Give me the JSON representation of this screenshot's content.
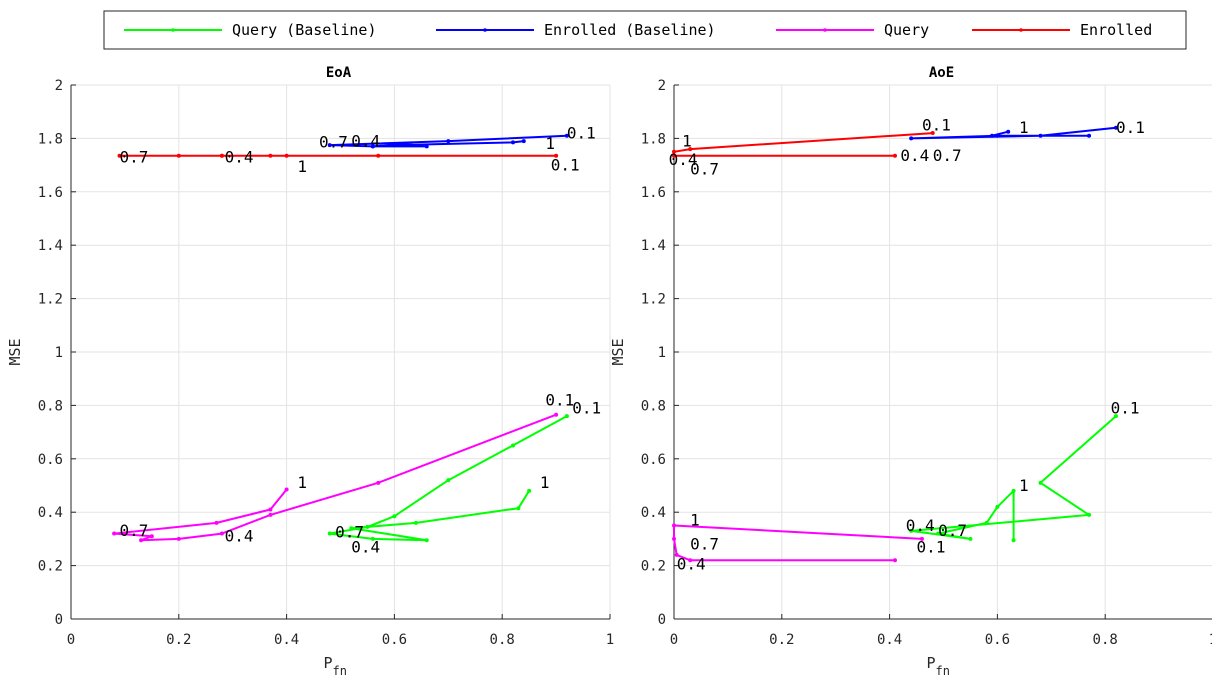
{
  "legend": {
    "entries": [
      {
        "label": "Query (Baseline)",
        "color": "#00ff00"
      },
      {
        "label": "Enrolled (Baseline)",
        "color": "#0000ff"
      },
      {
        "label": "Query",
        "color": "#ff00ff"
      },
      {
        "label": "Enrolled",
        "color": "#ff0000"
      }
    ]
  },
  "chart_data": [
    {
      "type": "line",
      "title": "EoA",
      "xlabel": "P",
      "xlabel_sub": "fn",
      "ylabel": "MSE",
      "xlim": [
        0,
        1
      ],
      "ylim": [
        0,
        2
      ],
      "xticks": [
        0,
        0.2,
        0.4,
        0.6,
        0.8,
        1
      ],
      "yticks": [
        0,
        0.2,
        0.4,
        0.6,
        0.8,
        1,
        1.2,
        1.4,
        1.6,
        1.8,
        2
      ],
      "xtick_labels": [
        "0",
        "0.2",
        "0.4",
        "0.6",
        "0.8",
        "1"
      ],
      "ytick_labels": [
        "0",
        "0.2",
        "0.4",
        "0.6",
        "0.8",
        "1",
        "1.2",
        "1.4",
        "1.6",
        "1.8",
        "2"
      ],
      "grid": true,
      "series": [
        {
          "name": "Query (Baseline)",
          "color": "#00ff00",
          "x": [
            0.92,
            0.82,
            0.7,
            0.6,
            0.55,
            0.48,
            0.56,
            0.66,
            0.52,
            0.64,
            0.83,
            0.85
          ],
          "y": [
            0.76,
            0.65,
            0.52,
            0.385,
            0.345,
            0.32,
            0.3,
            0.295,
            0.34,
            0.36,
            0.415,
            0.48
          ]
        },
        {
          "name": "Enrolled (Baseline)",
          "color": "#0000ff",
          "x": [
            0.92,
            0.7,
            0.48,
            0.56,
            0.66,
            0.62,
            0.56,
            0.6,
            0.82,
            0.84
          ],
          "y": [
            1.81,
            1.79,
            1.775,
            1.77,
            1.77,
            1.78,
            1.77,
            1.775,
            1.785,
            1.79
          ]
        },
        {
          "name": "Query",
          "color": "#ff00ff",
          "x": [
            0.9,
            0.57,
            0.37,
            0.28,
            0.2,
            0.13,
            0.15,
            0.08,
            0.27,
            0.37,
            0.4
          ],
          "y": [
            0.765,
            0.51,
            0.39,
            0.32,
            0.3,
            0.295,
            0.31,
            0.32,
            0.36,
            0.41,
            0.485
          ]
        },
        {
          "name": "Enrolled",
          "color": "#ff0000",
          "x": [
            0.9,
            0.57,
            0.28,
            0.2,
            0.09,
            0.28,
            0.37,
            0.4
          ],
          "y": [
            1.735,
            1.735,
            1.735,
            1.735,
            1.735,
            1.735,
            1.735,
            1.735
          ]
        }
      ],
      "annotations": [
        {
          "text": "0.1",
          "x": 0.93,
          "y": 0.77
        },
        {
          "text": "1",
          "x": 0.87,
          "y": 0.49
        },
        {
          "text": "0.7",
          "x": 0.49,
          "y": 0.305
        },
        {
          "text": "0.4",
          "x": 0.52,
          "y": 0.25
        },
        {
          "text": "0.1",
          "x": 0.88,
          "y": 0.8
        },
        {
          "text": "1",
          "x": 0.42,
          "y": 0.49
        },
        {
          "text": "0.7",
          "x": 0.09,
          "y": 0.31
        },
        {
          "text": "0.4",
          "x": 0.285,
          "y": 0.29
        },
        {
          "text": "0.1",
          "x": 0.92,
          "y": 1.8
        },
        {
          "text": "1",
          "x": 0.88,
          "y": 1.76
        },
        {
          "text": "0.7",
          "x": 0.46,
          "y": 1.765
        },
        {
          "text": "0.4",
          "x": 0.52,
          "y": 1.77
        },
        {
          "text": "0.1",
          "x": 0.89,
          "y": 1.68
        },
        {
          "text": "1",
          "x": 0.42,
          "y": 1.675
        },
        {
          "text": "0.7",
          "x": 0.09,
          "y": 1.71
        },
        {
          "text": "0.4",
          "x": 0.285,
          "y": 1.71
        }
      ]
    },
    {
      "type": "line",
      "title": "AoE",
      "xlabel": "P",
      "xlabel_sub": "fn",
      "ylabel": "MSE",
      "xlim": [
        0,
        1
      ],
      "ylim": [
        0,
        2
      ],
      "xticks": [
        0,
        0.2,
        0.4,
        0.6,
        0.8,
        1
      ],
      "yticks": [
        0,
        0.2,
        0.4,
        0.6,
        0.8,
        1,
        1.2,
        1.4,
        1.6,
        1.8,
        2
      ],
      "xtick_labels": [
        "0",
        "0.2",
        "0.4",
        "0.6",
        "0.8",
        "1"
      ],
      "ytick_labels": [
        "0",
        "0.2",
        "0.4",
        "0.6",
        "0.8",
        "1",
        "1.2",
        "1.4",
        "1.6",
        "1.8",
        "2"
      ],
      "grid": true,
      "series": [
        {
          "name": "Query (Baseline)",
          "color": "#00ff00",
          "x": [
            0.82,
            0.68,
            0.77,
            0.44,
            0.55,
            0.49,
            0.58,
            0.6,
            0.63,
            0.63
          ],
          "y": [
            0.76,
            0.51,
            0.39,
            0.33,
            0.3,
            0.32,
            0.36,
            0.42,
            0.48,
            0.295
          ]
        },
        {
          "name": "Enrolled (Baseline)",
          "color": "#0000ff",
          "x": [
            0.82,
            0.68,
            0.44,
            0.6,
            0.77,
            0.59,
            0.62
          ],
          "y": [
            1.84,
            1.81,
            1.8,
            1.81,
            1.81,
            1.81,
            1.825
          ]
        },
        {
          "name": "Query",
          "color": "#ff00ff",
          "x": [
            0.41,
            0.03,
            0.005,
            0.0,
            0.0,
            0.46
          ],
          "y": [
            0.22,
            0.22,
            0.24,
            0.3,
            0.35,
            0.3
          ]
        },
        {
          "name": "Enrolled",
          "color": "#ff0000",
          "x": [
            0.48,
            0.03,
            0.0,
            0.0,
            0.41
          ],
          "y": [
            1.82,
            1.76,
            1.75,
            1.735,
            1.735
          ]
        }
      ],
      "annotations": [
        {
          "text": "0.1",
          "x": 0.81,
          "y": 0.77
        },
        {
          "text": "1",
          "x": 0.64,
          "y": 0.48
        },
        {
          "text": "0.4",
          "x": 0.43,
          "y": 0.33
        },
        {
          "text": "0.7",
          "x": 0.49,
          "y": 0.31
        },
        {
          "text": "0.1",
          "x": 0.45,
          "y": 0.25
        },
        {
          "text": "1",
          "x": 0.03,
          "y": 0.35
        },
        {
          "text": "0.7",
          "x": 0.03,
          "y": 0.26
        },
        {
          "text": "0.4",
          "x": 0.005,
          "y": 0.185
        },
        {
          "text": "0.1",
          "x": 0.46,
          "y": 1.83
        },
        {
          "text": "1",
          "x": 0.64,
          "y": 1.82
        },
        {
          "text": "0.1",
          "x": 0.82,
          "y": 1.82
        },
        {
          "text": "0.4",
          "x": 0.42,
          "y": 1.715
        },
        {
          "text": "0.7",
          "x": 0.48,
          "y": 1.715
        },
        {
          "text": "1",
          "x": 0.015,
          "y": 1.77
        },
        {
          "text": "0.4",
          "x": -0.01,
          "y": 1.7
        },
        {
          "text": "0.7",
          "x": 0.03,
          "y": 1.665
        }
      ]
    }
  ]
}
